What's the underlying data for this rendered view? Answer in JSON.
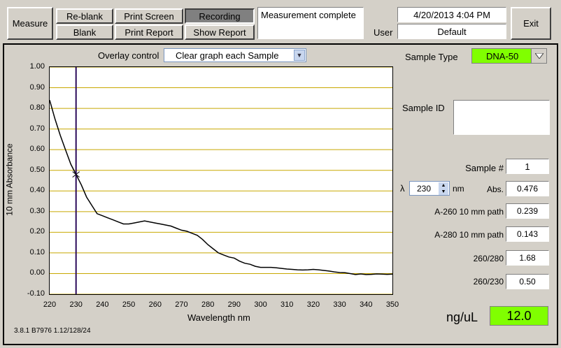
{
  "toolbar": {
    "measure": "Measure",
    "reblank": "Re-blank",
    "blank": "Blank",
    "print_screen": "Print Screen",
    "print_report": "Print Report",
    "recording": "Recording",
    "show_report": "Show Report",
    "status": "Measurement complete",
    "datetime": "4/20/2013  4:04 PM",
    "user_label": "User",
    "user_value": "Default",
    "exit": "Exit"
  },
  "overlay": {
    "label": "Overlay control",
    "value": "Clear graph each Sample"
  },
  "sample": {
    "type_label": "Sample Type",
    "type_value": "DNA-50",
    "id_label": "Sample ID",
    "id_value": "",
    "number_label": "Sample #",
    "number_value": "1",
    "lambda_symbol": "λ",
    "lambda_value": "230",
    "lambda_unit": "nm",
    "abs_label": "Abs.",
    "abs_value": "0.476",
    "a260_label": "A-260 10 mm path",
    "a260_value": "0.239",
    "a280_label": "A-280 10 mm path",
    "a280_value": "0.143",
    "r260_280_label": "260/280",
    "r260_280_value": "1.68",
    "r260_230_label": "260/230",
    "r260_230_value": "0.50",
    "conc_label": "ng/uL",
    "conc_value": "12.0"
  },
  "version": "3.8.1 B7976 1.12/128/24",
  "colors": {
    "gridline": "#c8a800",
    "cursor": "#2a0a5a",
    "sample_type_bg": "#80ff00",
    "conc_bg": "#80ff00"
  },
  "chart_data": {
    "type": "line",
    "xlabel": "Wavelength nm",
    "ylabel": "10 mm Absorbance",
    "xlim": [
      220,
      350
    ],
    "ylim": [
      -0.1,
      1.0
    ],
    "x_ticks": [
      "220",
      "230",
      "240",
      "250",
      "260",
      "270",
      "280",
      "290",
      "300",
      "310",
      "320",
      "330",
      "340",
      "350"
    ],
    "y_ticks": [
      "1.00",
      "0.90",
      "0.80",
      "0.70",
      "0.60",
      "0.50",
      "0.40",
      "0.30",
      "0.20",
      "0.10",
      "0.00",
      "-0.10"
    ],
    "cursor_x": 230,
    "grid": "horizontal",
    "x": [
      220,
      222,
      224,
      226,
      228,
      230,
      232,
      234,
      236,
      238,
      240,
      242,
      244,
      246,
      248,
      250,
      252,
      254,
      256,
      258,
      260,
      262,
      264,
      266,
      268,
      270,
      272,
      274,
      276,
      278,
      280,
      282,
      284,
      286,
      288,
      290,
      292,
      294,
      296,
      298,
      300,
      302,
      304,
      306,
      308,
      310,
      312,
      314,
      316,
      318,
      320,
      322,
      324,
      326,
      328,
      330,
      332,
      334,
      336,
      338,
      340,
      342,
      344,
      346,
      348,
      350
    ],
    "y": [
      0.84,
      0.75,
      0.67,
      0.6,
      0.53,
      0.48,
      0.43,
      0.37,
      0.33,
      0.29,
      0.28,
      0.27,
      0.26,
      0.25,
      0.24,
      0.24,
      0.245,
      0.25,
      0.255,
      0.25,
      0.245,
      0.24,
      0.235,
      0.23,
      0.22,
      0.21,
      0.205,
      0.195,
      0.185,
      0.165,
      0.14,
      0.12,
      0.1,
      0.09,
      0.08,
      0.075,
      0.06,
      0.05,
      0.045,
      0.035,
      0.03,
      0.03,
      0.03,
      0.028,
      0.025,
      0.022,
      0.02,
      0.018,
      0.017,
      0.018,
      0.02,
      0.018,
      0.015,
      0.012,
      0.008,
      0.005,
      0.004,
      0.0,
      -0.005,
      -0.002,
      -0.005,
      -0.004,
      -0.002,
      -0.003,
      -0.004,
      -0.003
    ]
  }
}
